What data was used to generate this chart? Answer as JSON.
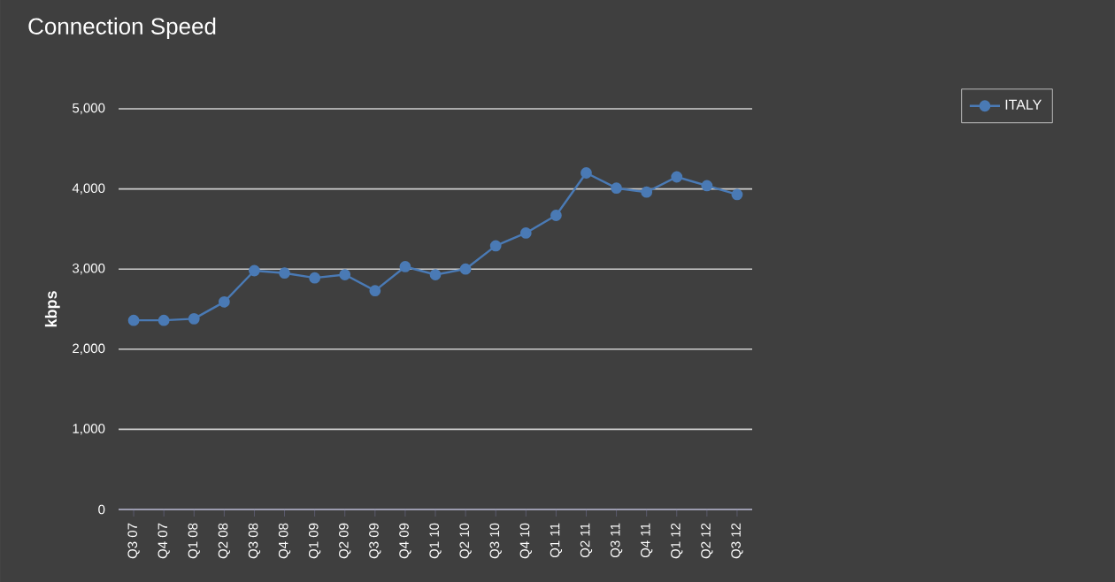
{
  "chart_data": {
    "type": "line",
    "title": "Connection Speed",
    "ylabel": "kbps",
    "categories": [
      "Q3 07",
      "Q4 07",
      "Q1 08",
      "Q2 08",
      "Q3 08",
      "Q4 08",
      "Q1 09",
      "Q2 09",
      "Q3 09",
      "Q4 09",
      "Q1 10",
      "Q2 10",
      "Q3 10",
      "Q4 10",
      "Q1 11",
      "Q2 11",
      "Q3 11",
      "Q4 11",
      "Q1 12",
      "Q2 12",
      "Q3 12"
    ],
    "series": [
      {
        "name": "ITALY",
        "color": "#4a7ab5",
        "values": [
          2360,
          2360,
          2380,
          2590,
          2980,
          2950,
          2890,
          2930,
          2730,
          3030,
          2930,
          3000,
          3290,
          3450,
          3670,
          4200,
          4010,
          3960,
          4150,
          4040,
          3930
        ]
      }
    ],
    "ylim": [
      0,
      5000
    ],
    "yticks": [
      0,
      {
        "value": 1000,
        "label": "1,000"
      },
      {
        "value": 2000,
        "label": "2,000"
      },
      {
        "value": 3000,
        "label": "3,000"
      },
      {
        "value": 4000,
        "label": "4,000"
      },
      {
        "value": 5000,
        "label": "5,000"
      }
    ],
    "grid": "y",
    "legend": "top right",
    "marker": "circle",
    "line_style": "solid"
  }
}
